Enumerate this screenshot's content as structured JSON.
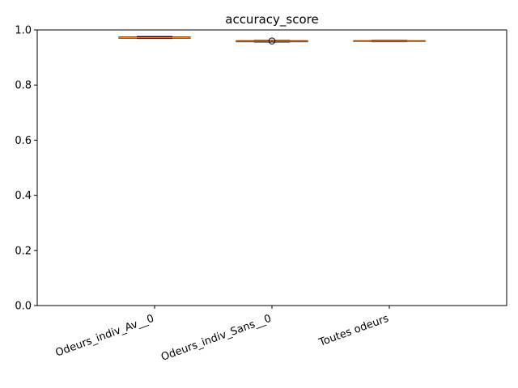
{
  "chart_data": {
    "type": "box",
    "title": "accuracy_score",
    "xlabel": "",
    "ylabel": "",
    "ylim": [
      0.0,
      1.0
    ],
    "yticks": [
      "0.0",
      "0.2",
      "0.4",
      "0.6",
      "0.8",
      "1.0"
    ],
    "categories": [
      "Odeurs_indiv_Av__0",
      "Odeurs_indiv_Sans__0",
      "Toutes odeurs"
    ],
    "boxes": [
      {
        "category": "Odeurs_indiv_Av__0",
        "whisker_low": 0.969,
        "q1": 0.97,
        "median": 0.972,
        "q3": 0.974,
        "whisker_high": 0.976,
        "outliers": []
      },
      {
        "category": "Odeurs_indiv_Sans__0",
        "whisker_low": 0.956,
        "q1": 0.957,
        "median": 0.959,
        "q3": 0.961,
        "whisker_high": 0.962,
        "outliers": [
          0.96
        ]
      },
      {
        "category": "Toutes odeurs",
        "whisker_low": 0.957,
        "q1": 0.958,
        "median": 0.959,
        "q3": 0.961,
        "whisker_high": 0.962,
        "outliers": []
      }
    ],
    "grid": false,
    "colors": {
      "median": "#ff7f0e",
      "box": "#000000"
    }
  }
}
